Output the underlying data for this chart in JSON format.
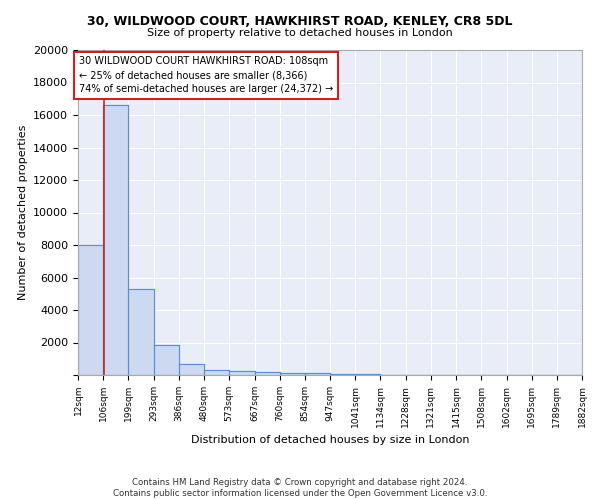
{
  "title1": "30, WILDWOOD COURT, HAWKHIRST ROAD, KENLEY, CR8 5DL",
  "title2": "Size of property relative to detached houses in London",
  "xlabel": "Distribution of detached houses by size in London",
  "ylabel": "Number of detached properties",
  "bin_edges": [
    12,
    106,
    199,
    293,
    386,
    480,
    573,
    667,
    760,
    854,
    947,
    1041,
    1134,
    1228,
    1321,
    1415,
    1508,
    1602,
    1695,
    1789,
    1882
  ],
  "bin_counts": [
    8000,
    16600,
    5300,
    1850,
    700,
    300,
    250,
    200,
    150,
    100,
    60,
    40,
    30,
    20,
    15,
    10,
    8,
    6,
    4,
    3
  ],
  "property_size": 108,
  "bar_color": "#ccd9f0",
  "bar_edge_color": "#5b8dd4",
  "vline_color": "#cc2222",
  "annotation_text": "30 WILDWOOD COURT HAWKHIRST ROAD: 108sqm\n← 25% of detached houses are smaller (8,366)\n74% of semi-detached houses are larger (24,372) →",
  "annotation_box_color": "white",
  "annotation_box_edge": "#cc2222",
  "ylim": [
    0,
    20000
  ],
  "yticks": [
    0,
    2000,
    4000,
    6000,
    8000,
    10000,
    12000,
    14000,
    16000,
    18000,
    20000
  ],
  "background_color": "#e8edf8",
  "footer_text": "Contains HM Land Registry data © Crown copyright and database right 2024.\nContains public sector information licensed under the Open Government Licence v3.0.",
  "tick_labels": [
    "12sqm",
    "106sqm",
    "199sqm",
    "293sqm",
    "386sqm",
    "480sqm",
    "573sqm",
    "667sqm",
    "760sqm",
    "854sqm",
    "947sqm",
    "1041sqm",
    "1134sqm",
    "1228sqm",
    "1321sqm",
    "1415sqm",
    "1508sqm",
    "1602sqm",
    "1695sqm",
    "1789sqm",
    "1882sqm"
  ]
}
